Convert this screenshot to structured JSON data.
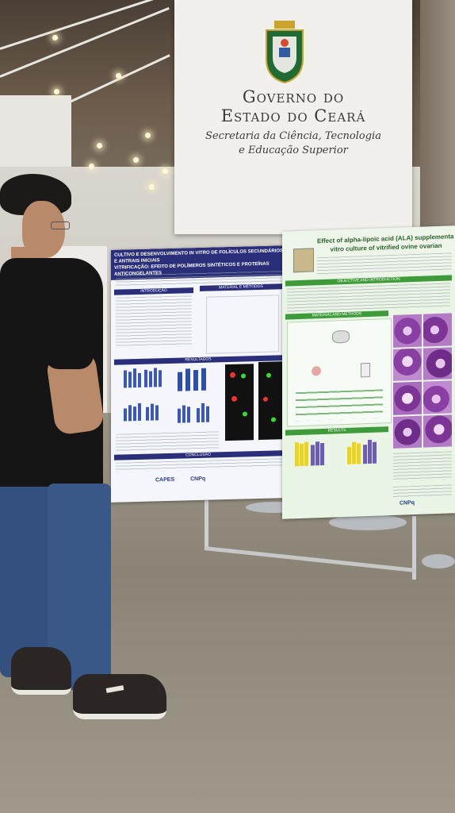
{
  "banner": {
    "line1": "Governo do",
    "line2": "Estado do Ceará",
    "sub1": "Secretaria da Ciência, Tecnologia",
    "sub2": "e Educação Superior"
  },
  "poster_left": {
    "title_line1": "CULTIVO E DESENVOLVIMENTO IN VITRO DE FOLÍCULOS SECUNDÁRIOS E ANTRAIS INICIAIS",
    "title_line2": "VITRIFICAÇÃO: EFEITO DE POLÍMEROS SINTÉTICOS E PROTEÍNAS ANTICONGELANTES",
    "section_intro": "INTRODUÇÃO",
    "section_methods": "MATERIAL E MÉTODOS",
    "section_results": "RESULTADOS",
    "section_conclusion": "CONCLUSÃO",
    "logos": [
      "CAPES",
      "CNPq"
    ]
  },
  "poster_right": {
    "title_line1": "Effect of alpha-lipoic acid (ALA) supplementa",
    "title_line2": "vitro culture of vitrified ovine ovarian",
    "section_objective": "OBJECTIVE AND INTRODUCTION",
    "section_methods": "MATERIAL AND METHODS",
    "section_results": "RESULTS",
    "logo": "CNPq"
  },
  "colors": {
    "banner_bg": "#f1f0ed",
    "poster_left_header": "#2b2f7a",
    "poster_right_header": "#3f9a3a",
    "shirt": "#151515",
    "jeans": "#34507e"
  }
}
